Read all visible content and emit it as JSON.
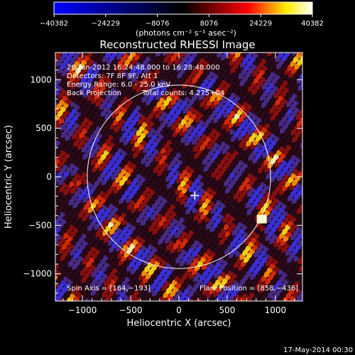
{
  "chart_data": {
    "type": "heatmap",
    "title": "Reconstructed RHESSI Image",
    "xlabel": "Heliocentric X (arcsec)",
    "ylabel": "Heliocentric Y (arcsec)",
    "xlim": [
      -1280,
      1280
    ],
    "ylim": [
      -1280,
      1280
    ],
    "x_ticks": [
      -1000,
      -500,
      0,
      500,
      1000
    ],
    "y_ticks": [
      -1000,
      -500,
      0,
      500,
      1000
    ],
    "x_tick_labels": [
      "−1000",
      "−500",
      "0",
      "500",
      "1000"
    ],
    "y_tick_labels": [
      "1000",
      "500",
      "0",
      "−500",
      "−1000"
    ],
    "colorbar": {
      "min": -40382,
      "max": 40382,
      "tick_labels": [
        "−40382",
        "−24229",
        "−8076",
        "8076",
        "24229",
        "40382"
      ],
      "units_label": "(photons cm⁻² s⁻¹ asec⁻²)"
    },
    "annotations": [
      "20-Jun-2012 16:24:48.000 to 16:28:48.000",
      "Detectors: 7F 8F 9F, Att 1",
      "Energy Range: 6.0 - 25.0 keV",
      "Back Projection",
      "Total counts: 4.275+04"
    ],
    "spin_axis_label": "Spin Axis = [164,−193]",
    "flare_position_label": "Flare Position = [858,−436]",
    "spin_axis": [
      164,
      -193
    ],
    "flare_position": [
      858,
      -436
    ],
    "solar_disk_radius_arcsec": 950,
    "grid": false
  },
  "footer": {
    "date": "17-May-2014 00:30"
  },
  "colors": {
    "background": "#000000",
    "text": "#ffffff",
    "colorbar_stops": [
      "#0000ff",
      "#000000",
      "#ff0000",
      "#ffff00",
      "#ffffff"
    ]
  }
}
